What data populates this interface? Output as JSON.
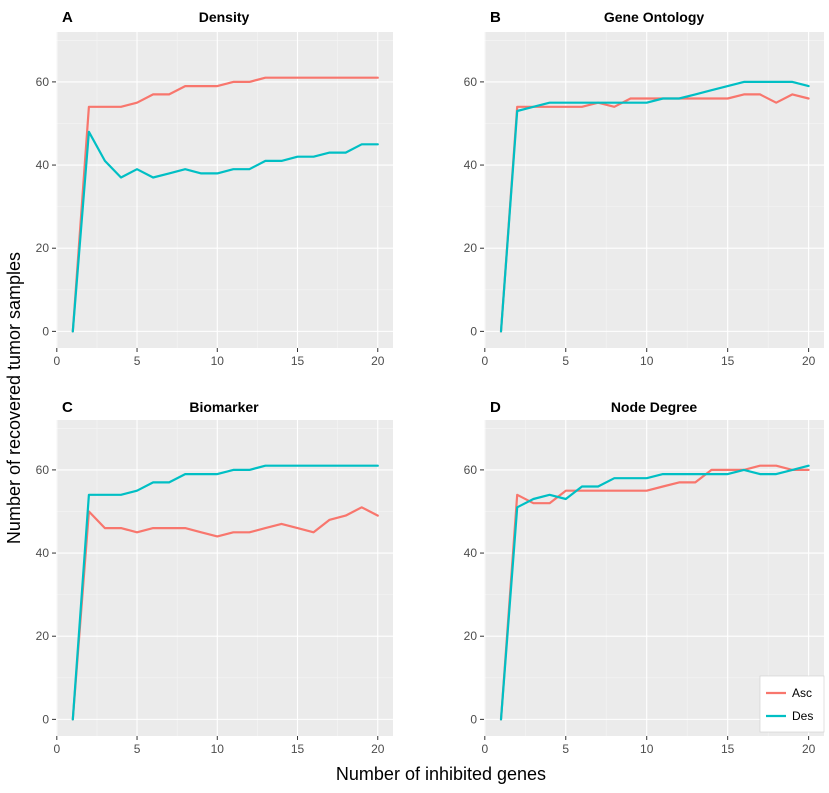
{
  "xlabel": "Number of inhibited genes",
  "ylabel": "Number of recovered tumor samples",
  "legend": [
    {
      "name": "Asc",
      "color": "#f8766d"
    },
    {
      "name": "Des",
      "color": "#00bfc4"
    }
  ],
  "chart_data": [
    {
      "type": "line",
      "letter": "A",
      "title": "Density",
      "xlim": [
        0,
        20
      ],
      "ylim": [
        -4,
        72
      ],
      "xticks": [
        "0",
        "5",
        "10",
        "15",
        "20"
      ],
      "yticks": [
        "0",
        "20",
        "40",
        "60"
      ],
      "x": [
        1,
        2,
        3,
        4,
        5,
        6,
        7,
        8,
        9,
        10,
        11,
        12,
        13,
        14,
        15,
        16,
        17,
        18,
        19,
        20
      ],
      "series": [
        {
          "name": "Asc",
          "values": [
            0,
            54,
            54,
            54,
            55,
            57,
            57,
            59,
            59,
            59,
            60,
            60,
            61,
            61,
            61,
            61,
            61,
            61,
            61,
            61
          ]
        },
        {
          "name": "Des",
          "values": [
            0,
            48,
            41,
            37,
            39,
            37,
            38,
            39,
            38,
            38,
            39,
            39,
            41,
            41,
            42,
            42,
            43,
            43,
            45,
            45
          ]
        }
      ]
    },
    {
      "type": "line",
      "letter": "B",
      "title": "Gene Ontology",
      "xlim": [
        0,
        20
      ],
      "ylim": [
        -4,
        72
      ],
      "xticks": [
        "0",
        "5",
        "10",
        "15",
        "20"
      ],
      "yticks": [
        "0",
        "20",
        "40",
        "60"
      ],
      "x": [
        1,
        2,
        3,
        4,
        5,
        6,
        7,
        8,
        9,
        10,
        11,
        12,
        13,
        14,
        15,
        16,
        17,
        18,
        19,
        20
      ],
      "series": [
        {
          "name": "Asc",
          "values": [
            0,
            54,
            54,
            54,
            54,
            54,
            55,
            54,
            56,
            56,
            56,
            56,
            56,
            56,
            56,
            57,
            57,
            55,
            57,
            56
          ]
        },
        {
          "name": "Des",
          "values": [
            0,
            53,
            54,
            55,
            55,
            55,
            55,
            55,
            55,
            55,
            56,
            56,
            57,
            58,
            59,
            60,
            60,
            60,
            60,
            59
          ]
        }
      ]
    },
    {
      "type": "line",
      "letter": "C",
      "title": "Biomarker",
      "xlim": [
        0,
        20
      ],
      "ylim": [
        -4,
        72
      ],
      "xticks": [
        "0",
        "5",
        "10",
        "15",
        "20"
      ],
      "yticks": [
        "0",
        "20",
        "40",
        "60"
      ],
      "x": [
        1,
        2,
        3,
        4,
        5,
        6,
        7,
        8,
        9,
        10,
        11,
        12,
        13,
        14,
        15,
        16,
        17,
        18,
        19,
        20
      ],
      "series": [
        {
          "name": "Asc",
          "values": [
            0,
            50,
            46,
            46,
            45,
            46,
            46,
            46,
            45,
            44,
            45,
            45,
            46,
            47,
            46,
            45,
            48,
            49,
            51,
            49
          ]
        },
        {
          "name": "Des",
          "values": [
            0,
            54,
            54,
            54,
            55,
            57,
            57,
            59,
            59,
            59,
            60,
            60,
            61,
            61,
            61,
            61,
            61,
            61,
            61,
            61
          ]
        }
      ]
    },
    {
      "type": "line",
      "letter": "D",
      "title": "Node Degree",
      "xlim": [
        0,
        20
      ],
      "ylim": [
        -4,
        72
      ],
      "xticks": [
        "0",
        "5",
        "10",
        "15",
        "20"
      ],
      "yticks": [
        "0",
        "20",
        "40",
        "60"
      ],
      "x": [
        1,
        2,
        3,
        4,
        5,
        6,
        7,
        8,
        9,
        10,
        11,
        12,
        13,
        14,
        15,
        16,
        17,
        18,
        19,
        20
      ],
      "series": [
        {
          "name": "Asc",
          "values": [
            0,
            54,
            52,
            52,
            55,
            55,
            55,
            55,
            55,
            55,
            56,
            57,
            57,
            60,
            60,
            60,
            61,
            61,
            60,
            60
          ]
        },
        {
          "name": "Des",
          "values": [
            0,
            51,
            53,
            54,
            53,
            56,
            56,
            58,
            58,
            58,
            59,
            59,
            59,
            59,
            59,
            60,
            59,
            59,
            60,
            61
          ]
        }
      ]
    }
  ]
}
